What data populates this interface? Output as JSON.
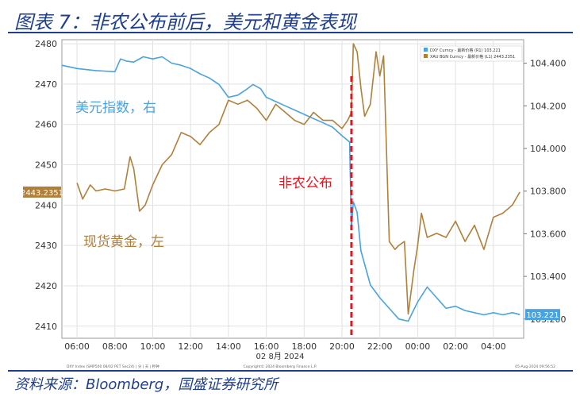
{
  "figure_title": "图表 7：非农公布前后，美元和黄金表现",
  "source_note": "资料来源：Bloomberg，国盛证券研究所",
  "colors": {
    "title": "#1f3f8e",
    "dxy": "#4aa3df",
    "gold": "#b0803a",
    "event_line": "#e8141c",
    "grid": "#e2e2e2",
    "plot_bg": "#ffffff"
  },
  "chart_data": {
    "type": "line",
    "title": "",
    "xlabel": "02 8月 2024",
    "x_ticks": [
      "06:00",
      "08:00",
      "10:00",
      "12:00",
      "14:00",
      "16:00",
      "18:00",
      "20:00",
      "22:00",
      "00:00",
      "02:00",
      "04:00"
    ],
    "x_range_hours": [
      5.2,
      29.6
    ],
    "left_axis": {
      "ticks": [
        "2480",
        "2470",
        "2460",
        "2450",
        "2440",
        "2430",
        "2420",
        "2410"
      ],
      "range": [
        2407,
        2481
      ]
    },
    "right_axis": {
      "ticks": [
        "104.400",
        "104.200",
        "104.000",
        "103.800",
        "103.600",
        "103.400",
        "103.200"
      ],
      "range": [
        103.11,
        104.51
      ]
    },
    "legend": {
      "position": "top-right",
      "items": [
        "DXY Curncy - 最新价格 (R1)  103.221",
        "XAU BGN Curncy - 最新价格 (L1)  2443.2351"
      ]
    },
    "annotations": {
      "dxy_label": "美元指数，右",
      "gold_label": "现货黄金，左",
      "event_label": "非农公布",
      "event_time_hours": 20.5,
      "gold_last_tag": "2443.2351",
      "dxy_last_tag": "103.221"
    },
    "footer_small": {
      "left": "DXY Index (SMP500 08/02 PET Sec24) | 分 | 天 | 秒钟",
      "center": "Copyright© 2024 Bloomberg Finance L.P.",
      "right": "05-Aug-2024 09:56:52"
    },
    "series": [
      {
        "name": "DXY Curncy",
        "axis": "right",
        "x": [
          5.2,
          6.0,
          7.0,
          8.0,
          8.3,
          8.6,
          9.0,
          9.5,
          10.0,
          10.5,
          11.0,
          11.5,
          12.0,
          12.5,
          13.0,
          13.5,
          14.0,
          14.5,
          15.0,
          15.3,
          15.7,
          16.0,
          16.5,
          17.0,
          17.5,
          18.0,
          18.5,
          19.0,
          19.5,
          20.0,
          20.4,
          20.5,
          20.6,
          20.8,
          21.0,
          21.5,
          22.0,
          22.5,
          23.0,
          23.5,
          24.0,
          24.5,
          25.0,
          25.5,
          26.0,
          26.5,
          27.0,
          27.5,
          28.0,
          28.5,
          29.0,
          29.4
        ],
        "y": [
          104.39,
          104.375,
          104.365,
          104.36,
          104.42,
          104.41,
          104.405,
          104.43,
          104.42,
          104.43,
          104.4,
          104.39,
          104.375,
          104.35,
          104.33,
          104.3,
          104.24,
          104.25,
          104.28,
          104.3,
          104.28,
          104.24,
          104.22,
          104.2,
          104.18,
          104.16,
          104.14,
          104.12,
          104.1,
          104.06,
          104.03,
          103.62,
          103.75,
          103.7,
          103.52,
          103.36,
          103.3,
          103.25,
          103.2,
          103.19,
          103.28,
          103.35,
          103.3,
          103.25,
          103.26,
          103.24,
          103.23,
          103.22,
          103.23,
          103.22,
          103.23,
          103.221
        ]
      },
      {
        "name": "XAU BGN Curncy",
        "axis": "left",
        "x": [
          6.0,
          6.3,
          6.7,
          7.0,
          7.5,
          8.0,
          8.5,
          8.8,
          9.0,
          9.3,
          9.6,
          10.0,
          10.5,
          11.0,
          11.5,
          12.0,
          12.5,
          13.0,
          13.5,
          14.0,
          14.5,
          15.0,
          15.5,
          16.0,
          16.5,
          17.0,
          17.5,
          18.0,
          18.5,
          19.0,
          19.5,
          20.0,
          20.3,
          20.5,
          20.6,
          20.8,
          21.0,
          21.2,
          21.5,
          21.8,
          22.0,
          22.2,
          22.5,
          22.8,
          23.0,
          23.3,
          23.5,
          23.8,
          24.0,
          24.2,
          24.5,
          25.0,
          25.5,
          26.0,
          26.5,
          27.0,
          27.5,
          28.0,
          28.5,
          29.0,
          29.4
        ],
        "y": [
          2445.5,
          2441.5,
          2445,
          2443.5,
          2444,
          2443.5,
          2444,
          2452,
          2449,
          2438.5,
          2440,
          2445,
          2450,
          2452.5,
          2458,
          2457,
          2455,
          2458,
          2460,
          2466,
          2465,
          2466,
          2464,
          2461,
          2465,
          2463,
          2461,
          2460,
          2463,
          2461,
          2461,
          2459,
          2461,
          2463,
          2480,
          2478,
          2469,
          2462,
          2465,
          2478,
          2472,
          2477,
          2431,
          2429,
          2430,
          2431,
          2413,
          2424,
          2430,
          2438,
          2432,
          2433,
          2432,
          2436,
          2431,
          2435,
          2429,
          2437,
          2438,
          2440,
          2443.2351
        ]
      }
    ]
  }
}
